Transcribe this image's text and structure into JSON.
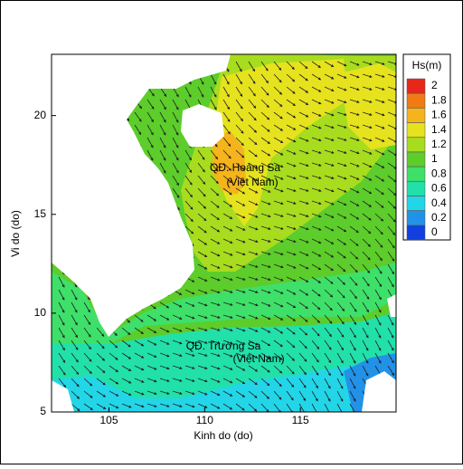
{
  "chart_data": {
    "type": "map",
    "x_label": "Kinh do (do)",
    "y_label": "Vi do (do)",
    "xlim": [
      102,
      120
    ],
    "ylim": [
      5,
      23.1
    ],
    "xticks": [
      105,
      110,
      115
    ],
    "yticks": [
      5,
      10,
      15,
      20
    ],
    "annotations": [
      "QĐ. Hoàng Sa",
      "(Việt Nam)",
      "QĐ. Trường Sa",
      "(Việt Nam)"
    ],
    "colorbar": {
      "title": "Hs(m)",
      "levels": [
        2,
        1.8,
        1.6,
        1.4,
        1.2,
        1,
        0.8,
        0.6,
        0.4,
        0.2,
        0
      ],
      "colors": [
        "#e8261a",
        "#f07a14",
        "#f5b41c",
        "#e6e21e",
        "#a8dc1e",
        "#5ccd2a",
        "#3ee06a",
        "#22e0aa",
        "#22d6e8",
        "#2292e8",
        "#1040e0"
      ]
    }
  }
}
